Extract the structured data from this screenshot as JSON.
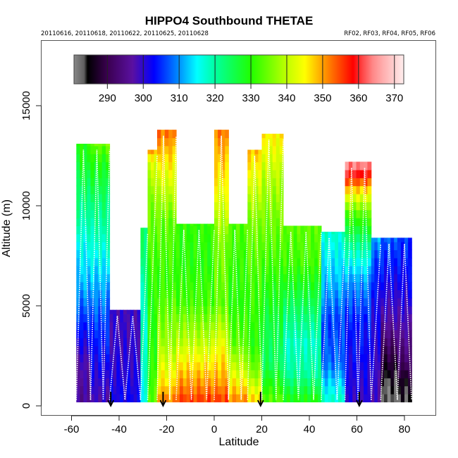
{
  "chart_data": {
    "type": "heatmap",
    "title": "HIPPO4 Southbound THETAE",
    "subtitle_left": "20110616, 20110618, 20110622, 20110625, 20110628",
    "subtitle_right": "RF02, RF03, RF04, RF05, RF06",
    "xlabel": "Latitude",
    "ylabel": "Altitude (m)",
    "xlim": [
      -70,
      88
    ],
    "ylim": [
      0,
      18000
    ],
    "xticks": [
      "-60",
      "-40",
      "-20",
      "0",
      "20",
      "40",
      "60",
      "80"
    ],
    "xtick_values": [
      -60,
      -40,
      -20,
      0,
      20,
      40,
      60,
      80
    ],
    "yticks": [
      "0",
      "5000",
      "10000",
      "15000"
    ],
    "ytick_values": [
      0,
      5000,
      10000,
      15000
    ],
    "colorbar": {
      "label_values": [
        290,
        300,
        310,
        320,
        330,
        340,
        350,
        360,
        370
      ],
      "labels": [
        "290",
        "300",
        "310",
        "320",
        "330",
        "340",
        "350",
        "360",
        "370"
      ],
      "range": [
        280.7,
        372.6
      ],
      "stops": [
        {
          "v": 280.7,
          "c": "#888888"
        },
        {
          "v": 283.5,
          "c": "#606060"
        },
        {
          "v": 284.5,
          "c": "#000000"
        },
        {
          "v": 290,
          "c": "#3a0050"
        },
        {
          "v": 297,
          "c": "#5a10a0"
        },
        {
          "v": 303,
          "c": "#0000ff"
        },
        {
          "v": 310,
          "c": "#0090ff"
        },
        {
          "v": 315,
          "c": "#00ffff"
        },
        {
          "v": 320,
          "c": "#00ffa0"
        },
        {
          "v": 330,
          "c": "#20ff00"
        },
        {
          "v": 340,
          "c": "#c0ff00"
        },
        {
          "v": 345,
          "c": "#ffff00"
        },
        {
          "v": 350,
          "c": "#ffa000"
        },
        {
          "v": 358.5,
          "c": "#ff0000"
        },
        {
          "v": 361,
          "c": "#ff4444"
        },
        {
          "v": 364,
          "c": "#ff8888"
        },
        {
          "v": 367,
          "c": "#ffb0b0"
        },
        {
          "v": 370,
          "c": "#ffd0d0"
        },
        {
          "v": 372.6,
          "c": "#ffeeee"
        }
      ]
    },
    "profiles": [
      {
        "lat_range": [
          -58,
          -52
        ],
        "top": 13100,
        "values": [
          [
            0,
            296
          ],
          [
            2000,
            298
          ],
          [
            4000,
            305
          ],
          [
            6000,
            312
          ],
          [
            8000,
            316
          ],
          [
            10000,
            322
          ],
          [
            12000,
            328
          ],
          [
            13100,
            330
          ]
        ]
      },
      {
        "lat_range": [
          -52,
          -44
        ],
        "top": 13100,
        "values": [
          [
            0,
            298
          ],
          [
            2000,
            302
          ],
          [
            4000,
            306
          ],
          [
            6000,
            312
          ],
          [
            8000,
            318
          ],
          [
            10000,
            323
          ],
          [
            12000,
            329
          ],
          [
            13100,
            336
          ]
        ]
      },
      {
        "lat_range": [
          -44,
          -31
        ],
        "top": 4800,
        "values": [
          [
            0,
            302
          ],
          [
            2000,
            300
          ],
          [
            4000,
            299
          ],
          [
            4800,
            299
          ]
        ]
      },
      {
        "lat_range": [
          -31,
          -28
        ],
        "top": 8900,
        "values": [
          [
            0,
            316
          ],
          [
            3000,
            318
          ],
          [
            6000,
            320
          ],
          [
            8900,
            324
          ]
        ]
      },
      {
        "lat_range": [
          -28,
          -24
        ],
        "top": 12800,
        "values": [
          [
            0,
            334
          ],
          [
            2000,
            330
          ],
          [
            5000,
            330
          ],
          [
            8000,
            333
          ],
          [
            10000,
            336
          ],
          [
            12000,
            342
          ],
          [
            12800,
            352
          ]
        ]
      },
      {
        "lat_range": [
          -24,
          -16
        ],
        "top": 13800,
        "values": [
          [
            0,
            352
          ],
          [
            1000,
            346
          ],
          [
            3000,
            338
          ],
          [
            6000,
            331
          ],
          [
            9000,
            334
          ],
          [
            11000,
            342
          ],
          [
            13000,
            350
          ],
          [
            13800,
            354
          ]
        ]
      },
      {
        "lat_range": [
          -16,
          0
        ],
        "top": 9100,
        "values": [
          [
            0,
            356
          ],
          [
            500,
            353
          ],
          [
            1500,
            348
          ],
          [
            3000,
            340
          ],
          [
            5000,
            332
          ],
          [
            7000,
            330
          ],
          [
            9100,
            331
          ]
        ]
      },
      {
        "lat_range": [
          0,
          6
        ],
        "top": 13800,
        "values": [
          [
            0,
            356
          ],
          [
            1000,
            350
          ],
          [
            2500,
            345
          ],
          [
            5000,
            334
          ],
          [
            8000,
            336
          ],
          [
            10000,
            342
          ],
          [
            12000,
            348
          ],
          [
            13800,
            353
          ]
        ]
      },
      {
        "lat_range": [
          6,
          14
        ],
        "top": 9100,
        "values": [
          [
            0,
            352
          ],
          [
            1500,
            342
          ],
          [
            3000,
            334
          ],
          [
            5000,
            330
          ],
          [
            7000,
            331
          ],
          [
            9100,
            333
          ]
        ]
      },
      {
        "lat_range": [
          14,
          20
        ],
        "top": 12800,
        "values": [
          [
            0,
            348
          ],
          [
            1500,
            336
          ],
          [
            3000,
            330
          ],
          [
            6000,
            332
          ],
          [
            9000,
            336
          ],
          [
            11000,
            342
          ],
          [
            12800,
            349
          ]
        ]
      },
      {
        "lat_range": [
          20,
          29
        ],
        "top": 13600,
        "values": [
          [
            0,
            334
          ],
          [
            2000,
            324
          ],
          [
            4000,
            326
          ],
          [
            7000,
            332
          ],
          [
            9000,
            335
          ],
          [
            11000,
            339
          ],
          [
            13600,
            346
          ]
        ]
      },
      {
        "lat_range": [
          29,
          45
        ],
        "top": 9000,
        "values": [
          [
            0,
            330
          ],
          [
            1500,
            320
          ],
          [
            3000,
            318
          ],
          [
            5000,
            325
          ],
          [
            7000,
            332
          ],
          [
            9000,
            334
          ]
        ]
      },
      {
        "lat_range": [
          45,
          55
        ],
        "top": 8700,
        "values": [
          [
            0,
            318
          ],
          [
            2000,
            308
          ],
          [
            4000,
            306
          ],
          [
            6000,
            312
          ],
          [
            8700,
            318
          ]
        ]
      },
      {
        "lat_range": [
          55,
          66
        ],
        "top": 12200,
        "values": [
          [
            0,
            300
          ],
          [
            2000,
            302
          ],
          [
            4000,
            304
          ],
          [
            6000,
            310
          ],
          [
            8000,
            322
          ],
          [
            9500,
            334
          ],
          [
            10500,
            346
          ],
          [
            11300,
            358
          ],
          [
            12000,
            366
          ],
          [
            12200,
            370
          ]
        ]
      },
      {
        "lat_range": [
          66,
          70
        ],
        "top": 8400,
        "values": [
          [
            0,
            298
          ],
          [
            2000,
            300
          ],
          [
            5000,
            302
          ],
          [
            7000,
            306
          ],
          [
            8400,
            312
          ]
        ]
      },
      {
        "lat_range": [
          70,
          77
        ],
        "top": 8400,
        "values": [
          [
            0,
            282
          ],
          [
            800,
            283
          ],
          [
            1500,
            286
          ],
          [
            2500,
            290
          ],
          [
            4000,
            297
          ],
          [
            6000,
            302
          ],
          [
            8400,
            308
          ]
        ]
      },
      {
        "lat_range": [
          77,
          83
        ],
        "top": 8400,
        "values": [
          [
            0,
            283
          ],
          [
            1000,
            286
          ],
          [
            2000,
            292
          ],
          [
            4000,
            298
          ],
          [
            6000,
            302
          ],
          [
            8400,
            306
          ]
        ]
      }
    ],
    "arrows_lat": [
      -43.5,
      -21.5,
      19.5,
      61
    ]
  }
}
